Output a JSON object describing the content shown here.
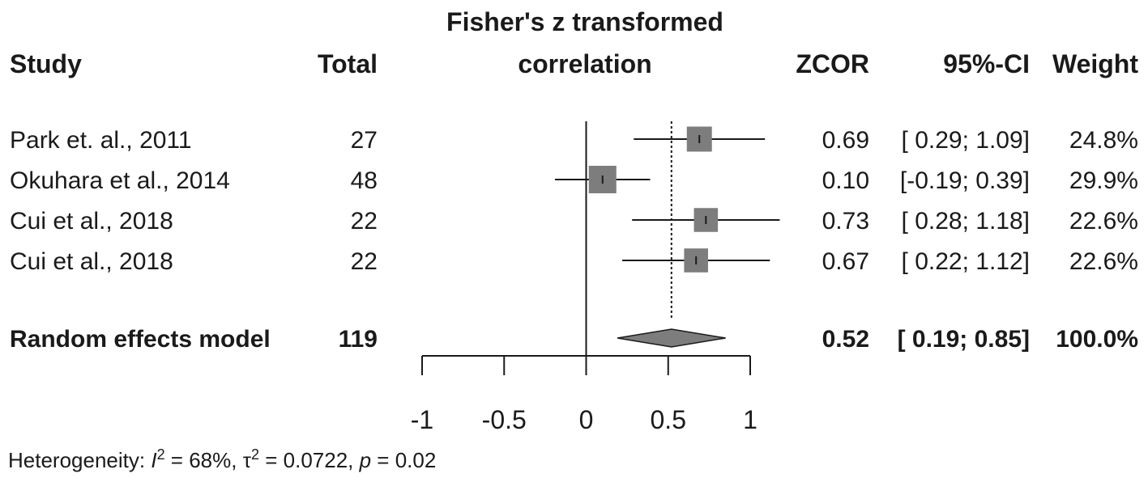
{
  "chart_data": {
    "type": "forest",
    "header": {
      "study": "Study",
      "total": "Total",
      "plot_title_line1": "Fisher's z transformed",
      "plot_title_line2": "correlation",
      "zcor": "ZCOR",
      "ci": "95%-CI",
      "weight": "Weight"
    },
    "studies": [
      {
        "name": "Park et. al., 2011",
        "total": "27",
        "zcor": 0.69,
        "lower": 0.29,
        "upper": 1.09,
        "zcor_text": "0.69",
        "ci_text": "[ 0.29; 1.09]",
        "weight_text": "24.8%",
        "weight": 24.8
      },
      {
        "name": "Okuhara et al., 2014",
        "total": "48",
        "zcor": 0.1,
        "lower": -0.19,
        "upper": 0.39,
        "zcor_text": "0.10",
        "ci_text": "[-0.19; 0.39]",
        "weight_text": "29.9%",
        "weight": 29.9
      },
      {
        "name": "Cui et al., 2018",
        "total": "22",
        "zcor": 0.73,
        "lower": 0.28,
        "upper": 1.18,
        "zcor_text": "0.73",
        "ci_text": "[ 0.28; 1.18]",
        "weight_text": "22.6%",
        "weight": 22.6
      },
      {
        "name": "Cui et al., 2018",
        "total": "22",
        "zcor": 0.67,
        "lower": 0.22,
        "upper": 1.12,
        "zcor_text": "0.67",
        "ci_text": "[ 0.22; 1.12]",
        "weight_text": "22.6%",
        "weight": 22.6
      }
    ],
    "summary": {
      "name": "Random effects model",
      "total": "119",
      "zcor": 0.52,
      "lower": 0.19,
      "upper": 0.85,
      "zcor_text": "0.52",
      "ci_text": "[ 0.19; 0.85]",
      "weight_text": "100.0%"
    },
    "xlim": [
      -1,
      1
    ],
    "x_ticks": [
      -1,
      -0.5,
      0,
      0.5,
      1
    ],
    "x_tick_labels": [
      "-1",
      "-0.5",
      "0",
      "0.5",
      "1"
    ],
    "reference_line": 0,
    "summary_line": 0.52,
    "heterogeneity": {
      "prefix": "Heterogeneity: ",
      "i2_symbol": "I",
      "i2_sup": "2",
      "i2_value": " = 68%, ",
      "tau2_symbol": "τ",
      "tau2_sup": "2",
      "tau2_value": " = 0.0722, ",
      "p_symbol": "p",
      "p_value": " = 0.02"
    },
    "colors": {
      "square": "#7d7d7d",
      "diamond": "#7d7d7d",
      "line": "#1a1a1a"
    }
  }
}
